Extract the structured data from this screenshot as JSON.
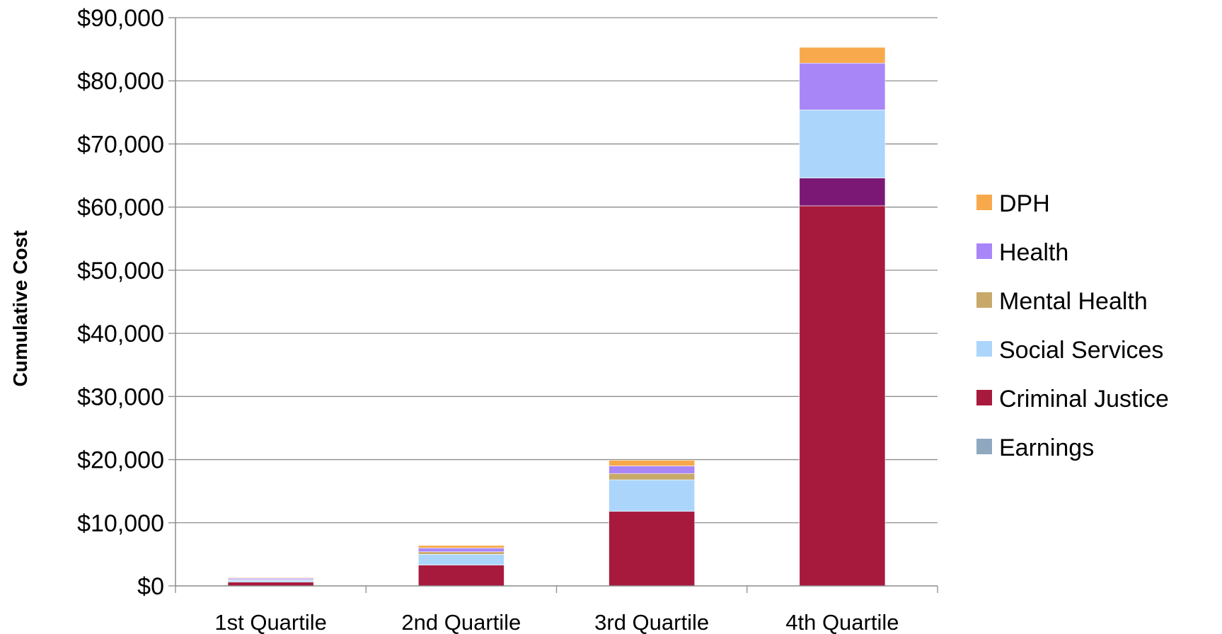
{
  "chart_data": {
    "type": "bar",
    "stacked": true,
    "categories": [
      "1st Quartile",
      "2nd Quartile",
      "3rd Quartile",
      "4th Quartile"
    ],
    "series": [
      {
        "name": "Earnings",
        "color": "#8fa8c0",
        "values": [
          0,
          0,
          0,
          0
        ]
      },
      {
        "name": "Criminal Justice",
        "color": "#a8193e",
        "values": [
          600,
          3300,
          11800,
          60200
        ]
      },
      {
        "name": "",
        "color": "#7b1875",
        "values": [
          0,
          0,
          0,
          4400
        ]
      },
      {
        "name": "Social Services",
        "color": "#acd5fc",
        "values": [
          300,
          1700,
          5000,
          10800
        ]
      },
      {
        "name": "Mental Health",
        "color": "#c8a96a",
        "values": [
          100,
          400,
          1000,
          0
        ]
      },
      {
        "name": "Health",
        "color": "#a886f8",
        "values": [
          200,
          600,
          1200,
          7400
        ]
      },
      {
        "name": "DPH",
        "color": "#f8a94c",
        "values": [
          100,
          400,
          900,
          2500
        ]
      }
    ],
    "legend": [
      "DPH",
      "Health",
      "Mental Health",
      "Social Services",
      "Criminal Justice",
      "Earnings"
    ],
    "title": "",
    "xlabel": "",
    "ylabel": "Cumulative Cost",
    "ylim": [
      0,
      90000
    ],
    "yticks": [
      "$0",
      "$10,000",
      "$20,000",
      "$30,000",
      "$40,000",
      "$50,000",
      "$60,000",
      "$70,000",
      "$80,000",
      "$90,000"
    ],
    "grid": true,
    "legend_position": "right"
  }
}
